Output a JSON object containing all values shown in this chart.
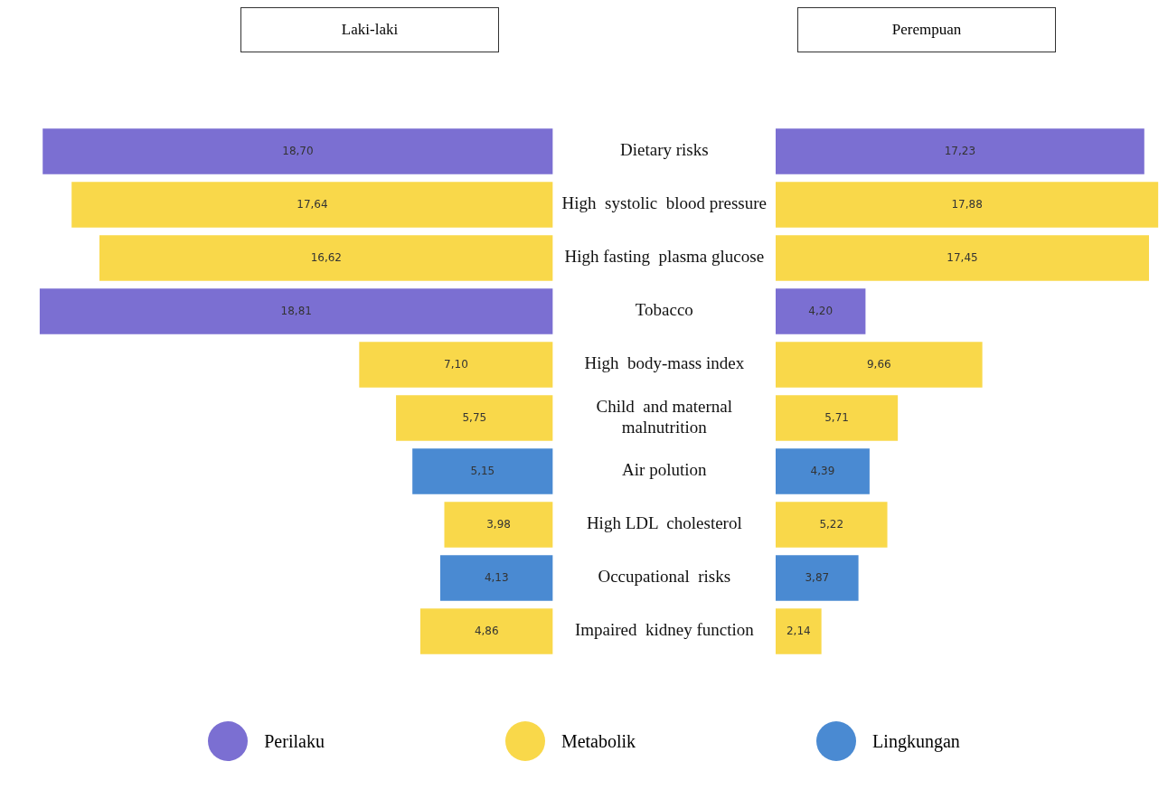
{
  "chart_data": [
    {
      "type": "bar",
      "title": "Laki-laki",
      "orientation": "horizontal",
      "stacked": true,
      "categories": [
        "Dietary risks",
        "High  systolic  blood pressure",
        "High fasting  plasma glucose",
        "Tobacco",
        "High  body-mass index",
        "Child  and maternal malnutrition",
        "Air polution",
        "High LDL  cholesterol",
        "Occupational  risks",
        "Impaired  kidney function"
      ],
      "tick_labels": "y",
      "legend": "bottom",
      "series": [
        {
          "name": "Perilaku",
          "color": "#7b6fd2",
          "values": [
            18.7,
            null,
            null,
            18.81,
            null,
            null,
            null,
            null,
            null,
            null
          ],
          "value_labels": [
            "18,70",
            null,
            null,
            "18,81",
            null,
            null,
            null,
            null,
            null,
            null
          ]
        },
        {
          "name": "Metabolik",
          "color": "#f9d84a",
          "values": [
            null,
            17.64,
            16.62,
            null,
            7.1,
            5.75,
            null,
            3.98,
            null,
            4.86
          ],
          "value_labels": [
            null,
            "17,64",
            "16,62",
            null,
            "7,10",
            "5,75",
            null,
            "3,98",
            null,
            "4,86"
          ]
        },
        {
          "name": "Lingkungan",
          "color": "#4a8ad2",
          "values": [
            null,
            null,
            null,
            null,
            null,
            null,
            5.15,
            null,
            4.13,
            null
          ],
          "value_labels": [
            null,
            null,
            null,
            null,
            null,
            null,
            "5,15",
            null,
            "4,13",
            null
          ]
        }
      ]
    },
    {
      "type": "bar",
      "title": "Perempuan",
      "orientation": "horizontal",
      "stacked": true,
      "categories": [
        null,
        null,
        null,
        null,
        null,
        null,
        null,
        null,
        null,
        null
      ],
      "tick_labels": false,
      "series": [
        {
          "color": "#7b6fd2",
          "values": [
            17.23,
            null,
            null,
            4.2,
            null,
            null,
            null,
            null,
            null,
            null
          ],
          "value_labels": [
            "17,23",
            null,
            null,
            "4,20",
            null,
            null,
            null,
            null,
            null,
            null
          ]
        },
        {
          "color": "#f9d84a",
          "values": [
            null,
            17.88,
            17.45,
            null,
            9.66,
            5.71,
            null,
            5.22,
            null,
            2.14
          ],
          "value_labels": [
            null,
            "17,88",
            "17,45",
            null,
            "9,66",
            "5,71",
            null,
            "5,22",
            null,
            "2,14"
          ]
        },
        {
          "color": "#4a8ad2",
          "values": [
            null,
            null,
            null,
            null,
            null,
            null,
            4.39,
            null,
            3.87,
            null
          ],
          "value_labels": [
            null,
            null,
            null,
            null,
            null,
            null,
            "4,39",
            null,
            "3,87",
            null
          ]
        }
      ]
    }
  ]
}
